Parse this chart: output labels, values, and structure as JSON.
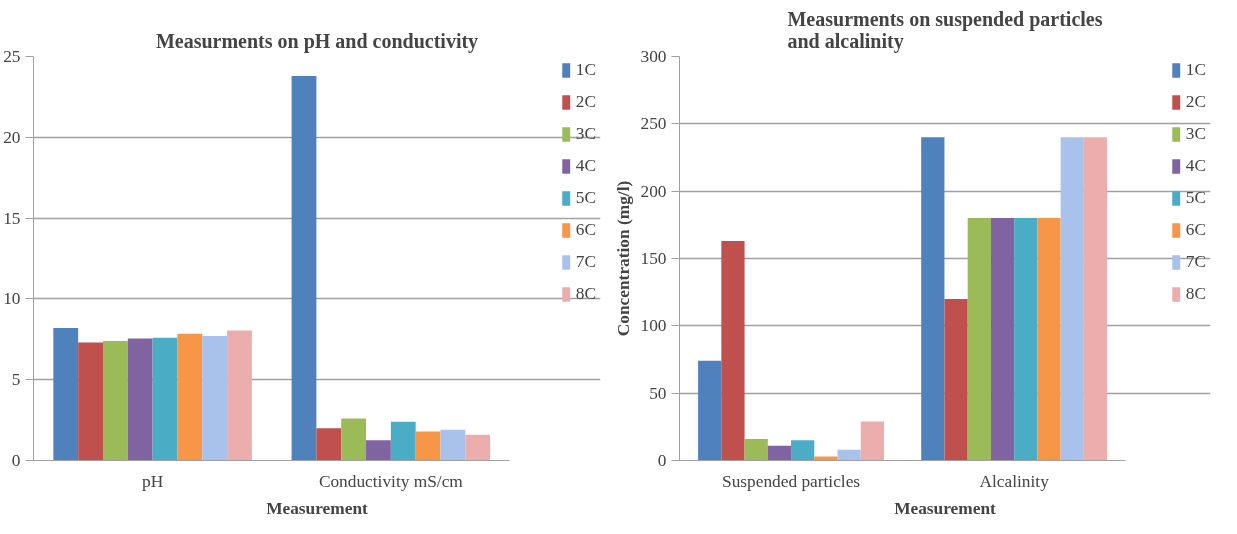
{
  "chart_data": [
    {
      "type": "bar",
      "title": "Measurments on pH and conductivity",
      "xlabel": "Measurement",
      "categories": [
        "pH",
        "Conductivity mS/cm"
      ],
      "ylim": [
        0,
        25
      ],
      "yticks": [
        0,
        5,
        10,
        15,
        20,
        25
      ],
      "grid": "y",
      "legend": "right",
      "series": [
        {
          "name": "1C",
          "color": "#4f81bd",
          "values": [
            8.2,
            23.8
          ]
        },
        {
          "name": "2C",
          "color": "#c0504d",
          "values": [
            7.3,
            2.0
          ]
        },
        {
          "name": "3C",
          "color": "#9bbb59",
          "values": [
            7.4,
            2.6
          ]
        },
        {
          "name": "4C",
          "color": "#8064a2",
          "values": [
            7.55,
            1.25
          ]
        },
        {
          "name": "5C",
          "color": "#4bacc6",
          "values": [
            7.6,
            2.4
          ]
        },
        {
          "name": "6C",
          "color": "#f79646",
          "values": [
            7.85,
            1.8
          ]
        },
        {
          "name": "7C",
          "color": "#a9c2ec",
          "values": [
            7.7,
            1.9
          ]
        },
        {
          "name": "8C",
          "color": "#ecaeac",
          "values": [
            8.05,
            1.6
          ]
        }
      ]
    },
    {
      "type": "bar",
      "title": "Measurments on suspended particles and alcalinity",
      "xlabel": "Measurement",
      "ylabel": "Concentration (mg/l)",
      "categories": [
        "Suspended particles",
        "Alcalinity"
      ],
      "ylim": [
        0,
        300
      ],
      "yticks": [
        0,
        50,
        100,
        150,
        200,
        250,
        300
      ],
      "grid": "y",
      "legend": "right",
      "series": [
        {
          "name": "1C",
          "color": "#4f81bd",
          "values": [
            74,
            240
          ]
        },
        {
          "name": "2C",
          "color": "#c0504d",
          "values": [
            163,
            120
          ]
        },
        {
          "name": "3C",
          "color": "#9bbb59",
          "values": [
            16,
            180
          ]
        },
        {
          "name": "4C",
          "color": "#8064a2",
          "values": [
            11,
            180
          ]
        },
        {
          "name": "5C",
          "color": "#4bacc6",
          "values": [
            15,
            180
          ]
        },
        {
          "name": "6C",
          "color": "#f79646",
          "values": [
            3,
            180
          ]
        },
        {
          "name": "7C",
          "color": "#a9c2ec",
          "values": [
            8,
            240
          ]
        },
        {
          "name": "8C",
          "color": "#ecaeac",
          "values": [
            29,
            240
          ]
        }
      ]
    }
  ]
}
